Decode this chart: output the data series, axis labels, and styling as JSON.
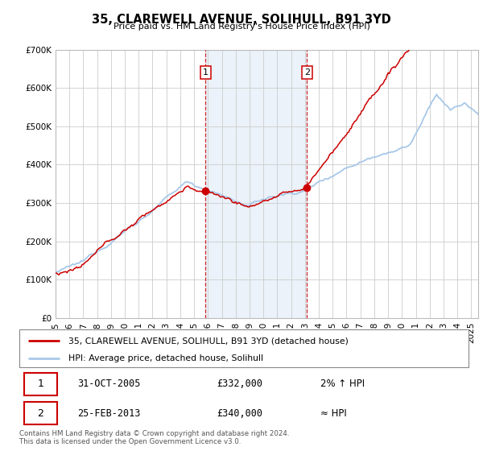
{
  "title": "35, CLAREWELL AVENUE, SOLIHULL, B91 3YD",
  "subtitle": "Price paid vs. HM Land Registry's House Price Index (HPI)",
  "ylim": [
    0,
    700000
  ],
  "xlim_start": 1995.0,
  "xlim_end": 2025.5,
  "hpi_color": "#a8c8e8",
  "price_color": "#cc0000",
  "marker_color": "#cc0000",
  "vline_color": "#cc0000",
  "shade_color": "#dce8f5",
  "transaction1_x": 2005.83,
  "transaction1_y": 332000,
  "transaction2_x": 2013.15,
  "transaction2_y": 340000,
  "legend_label1": "35, CLAREWELL AVENUE, SOLIHULL, B91 3YD (detached house)",
  "legend_label2": "HPI: Average price, detached house, Solihull",
  "table_row1_num": "1",
  "table_row1_date": "31-OCT-2005",
  "table_row1_price": "£332,000",
  "table_row1_hpi": "2% ↑ HPI",
  "table_row2_num": "2",
  "table_row2_date": "25-FEB-2013",
  "table_row2_price": "£340,000",
  "table_row2_hpi": "≈ HPI",
  "footer": "Contains HM Land Registry data © Crown copyright and database right 2024.\nThis data is licensed under the Open Government Licence v3.0.",
  "background_color": "#ffffff",
  "grid_color": "#cccccc"
}
